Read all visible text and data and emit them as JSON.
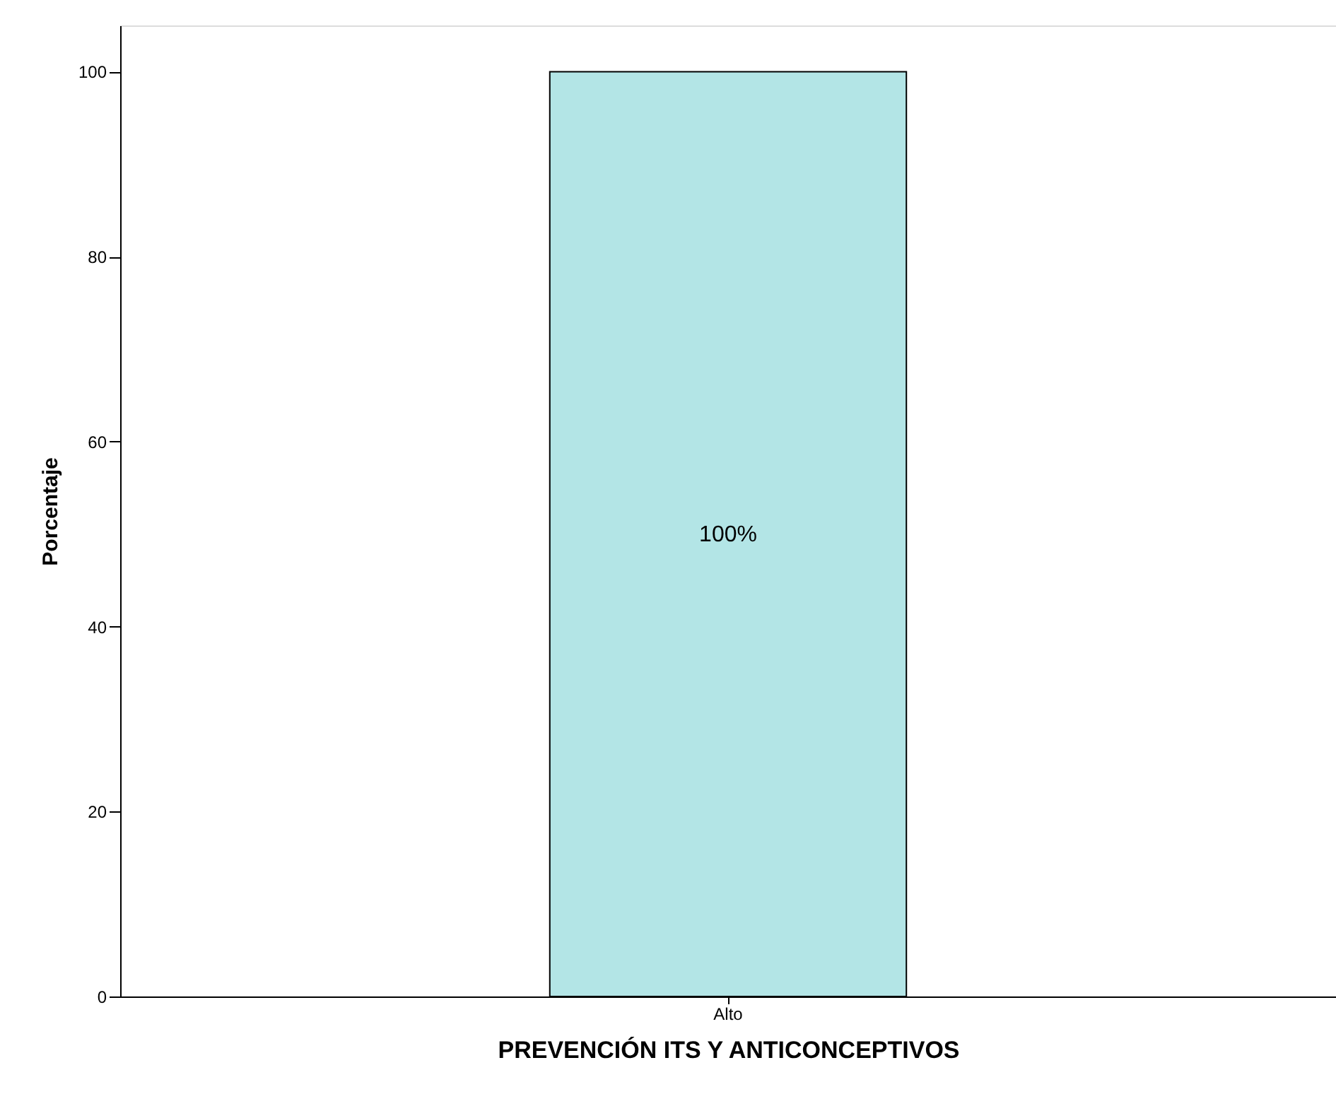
{
  "chart_data": {
    "type": "bar",
    "xlabel": "PREVENCIÓN ITS Y ANTICONCEPTIVOS",
    "ylabel": "Porcentaje",
    "categories": [
      "Alto"
    ],
    "values": [
      100
    ],
    "color": "#b3e5e6",
    "value_labels": [
      "100%"
    ],
    "ylim": [
      0,
      105
    ],
    "yticks": [
      0,
      20,
      40,
      60,
      80,
      100
    ],
    "grid": false
  }
}
